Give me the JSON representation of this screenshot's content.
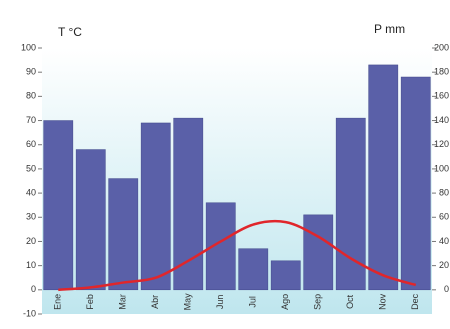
{
  "chart_data": {
    "type": "bar",
    "y_label": "T °C",
    "y2_label": "P mm",
    "categories": [
      "Ene",
      "Feb",
      "Mar",
      "Abr",
      "May",
      "Jun",
      "Jul",
      "Ago",
      "Sep",
      "Oct",
      "Nov",
      "Dec"
    ],
    "series": [
      {
        "type": "bar",
        "axis": "y2",
        "color": "#5a60a8",
        "values": [
          140,
          116,
          92,
          138,
          142,
          72,
          34,
          24,
          62,
          142,
          186,
          176
        ]
      },
      {
        "type": "line",
        "color": "#e0262b",
        "values": [
          0,
          1,
          3,
          5,
          12,
          20,
          27,
          28,
          22,
          13,
          6,
          2
        ]
      }
    ],
    "ylim": [
      -10,
      100
    ],
    "yticks": [
      -10,
      0,
      10,
      20,
      30,
      40,
      50,
      60,
      70,
      80,
      90,
      100
    ],
    "y2lim": [
      -20,
      200
    ],
    "y2ticks": [
      0,
      20,
      40,
      60,
      80,
      100,
      120,
      140,
      160,
      180,
      200
    ]
  }
}
